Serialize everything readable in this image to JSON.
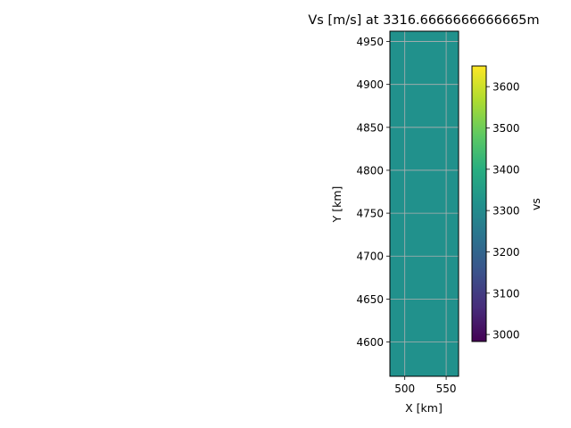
{
  "chart_data": {
    "type": "heatmap",
    "title": "Vs [m/s] at 3316.6666666666665m",
    "xlabel": "X [km]",
    "ylabel": "Y [km]",
    "xlim": [
      482,
      565
    ],
    "ylim": [
      4560,
      4962
    ],
    "xticks": [
      500,
      550
    ],
    "yticks": [
      4600,
      4650,
      4700,
      4750,
      4800,
      4850,
      4900,
      4950
    ],
    "grid": true,
    "field": {
      "value": 3316.6666666666665,
      "color": "#21918c"
    },
    "colorbar": {
      "label": "vs",
      "range": [
        2983,
        3650
      ],
      "ticks": [
        3000,
        3100,
        3200,
        3300,
        3400,
        3500,
        3600
      ],
      "colormap": "viridis"
    }
  }
}
